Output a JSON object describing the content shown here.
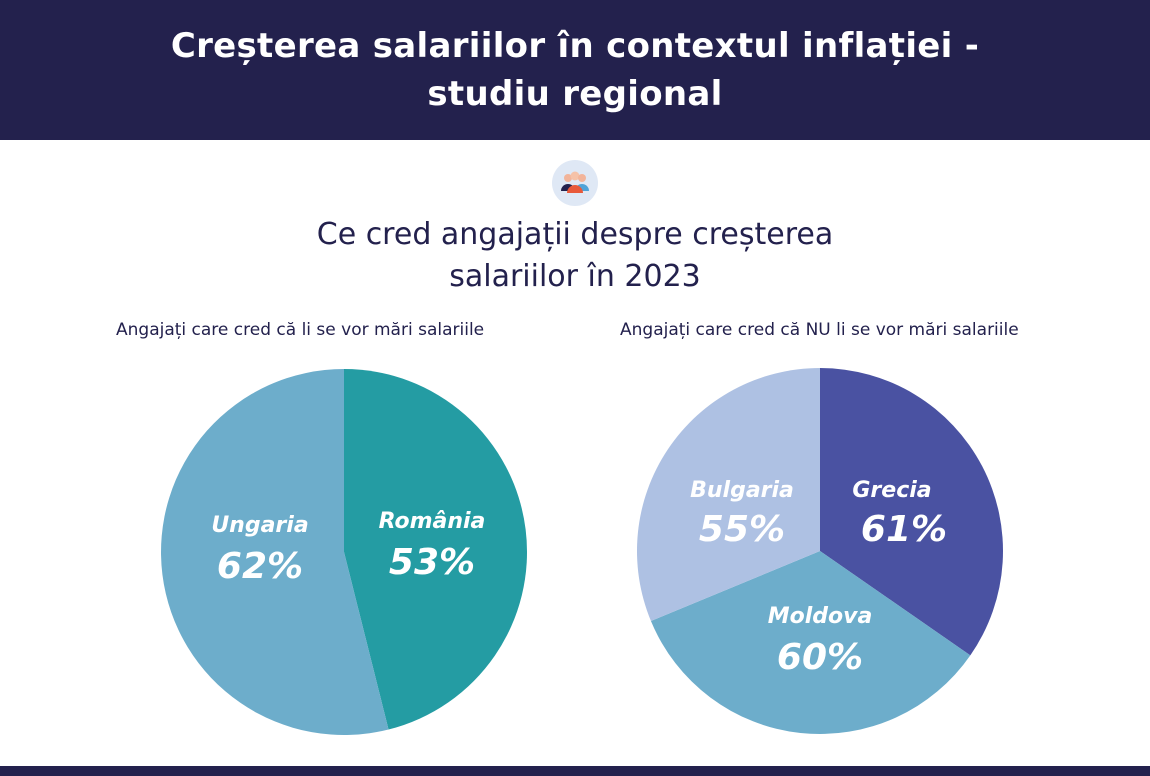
{
  "header": {
    "title": "Creșterea salariilor în contextul inflației - studiu regional"
  },
  "icon": {
    "name": "people-group-icon"
  },
  "subtitle": "Ce cred angajații despre creșterea salariilor în 2023",
  "colors": {
    "header_bg": "#23214d",
    "romania": "#249ca3",
    "ungaria": "#6dadcb",
    "grecia": "#4a52a2",
    "moldova": "#6dadcb",
    "bulgaria": "#aec1e3"
  },
  "chart_data": [
    {
      "type": "pie",
      "title": "Angajați care cred că li se vor mări salariile",
      "slices": [
        {
          "name": "România",
          "value": 53,
          "label": "53%",
          "color": "#249ca3"
        },
        {
          "name": "Ungaria",
          "value": 62,
          "label": "62%",
          "color": "#6dadcb"
        }
      ]
    },
    {
      "type": "pie",
      "title": "Angajați care cred că NU li se vor mări salariile",
      "slices": [
        {
          "name": "Grecia",
          "value": 61,
          "label": "61%",
          "color": "#4a52a2"
        },
        {
          "name": "Moldova",
          "value": 60,
          "label": "60%",
          "color": "#6dadcb"
        },
        {
          "name": "Bulgaria",
          "value": 55,
          "label": "55%",
          "color": "#aec1e3"
        }
      ]
    }
  ]
}
